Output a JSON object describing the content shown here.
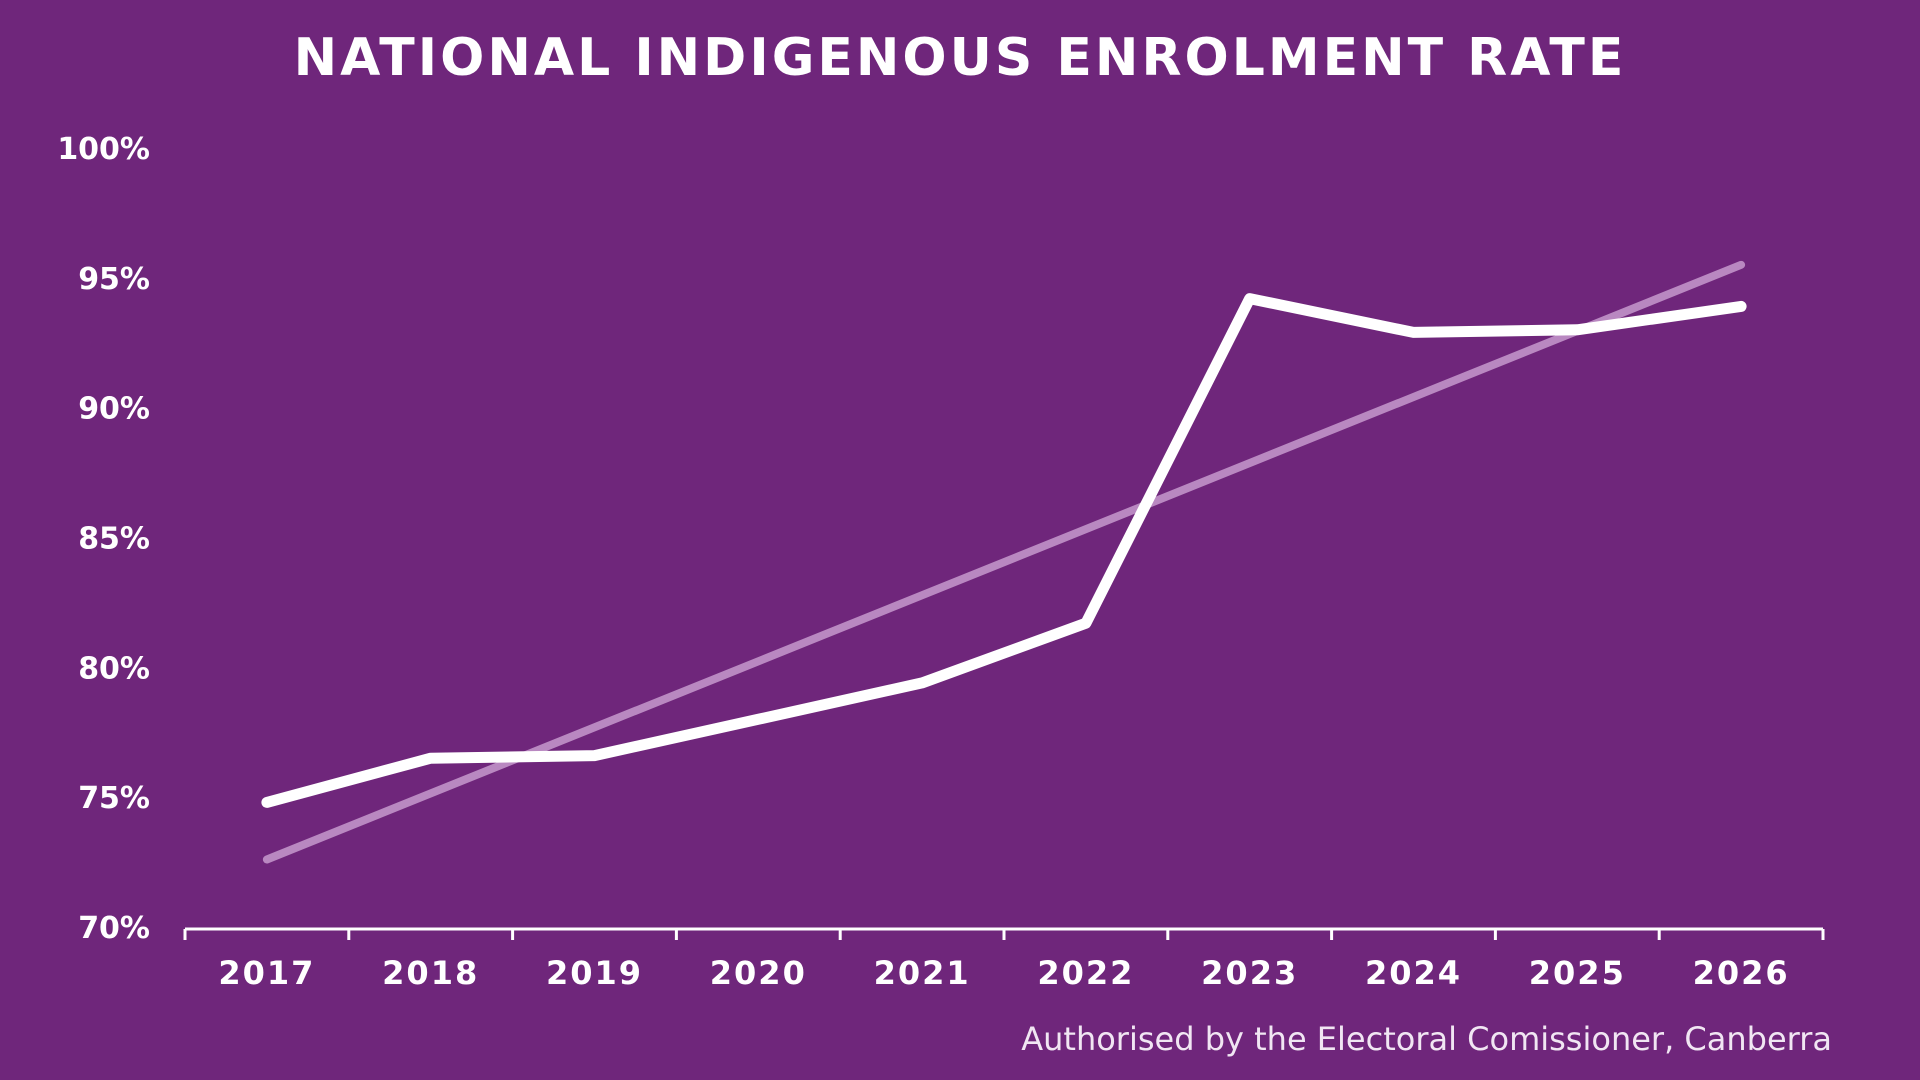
{
  "colors": {
    "background": "#6f267b",
    "line": "#ffffff",
    "trend": "#c79ace",
    "axis": "#ffffff"
  },
  "footnote": "Authorised by the Electoral Comissioner, Canberra",
  "chart_data": {
    "type": "line",
    "title": "NATIONAL INDIGENOUS ENROLMENT RATE",
    "xlabel": "",
    "ylabel": "",
    "categories": [
      "2017",
      "2018",
      "2019",
      "2020",
      "2021",
      "2022",
      "2023",
      "2024",
      "2025",
      "2026"
    ],
    "ylim": [
      70,
      100
    ],
    "y_ticks": [
      100,
      95,
      90,
      85,
      80,
      75,
      70
    ],
    "y_tick_labels": [
      "100%",
      "95%",
      "90%",
      "85%",
      "80%",
      "75%",
      "70%"
    ],
    "series": [
      {
        "values": [
          74.8,
          76.5,
          76.6,
          78.0,
          79.4,
          81.7,
          94.2,
          92.9,
          93.0,
          93.9
        ]
      }
    ],
    "trendline": {
      "start": 72.6,
      "end": 95.5
    },
    "drop_lines": true,
    "grid": false,
    "legend": "none"
  }
}
